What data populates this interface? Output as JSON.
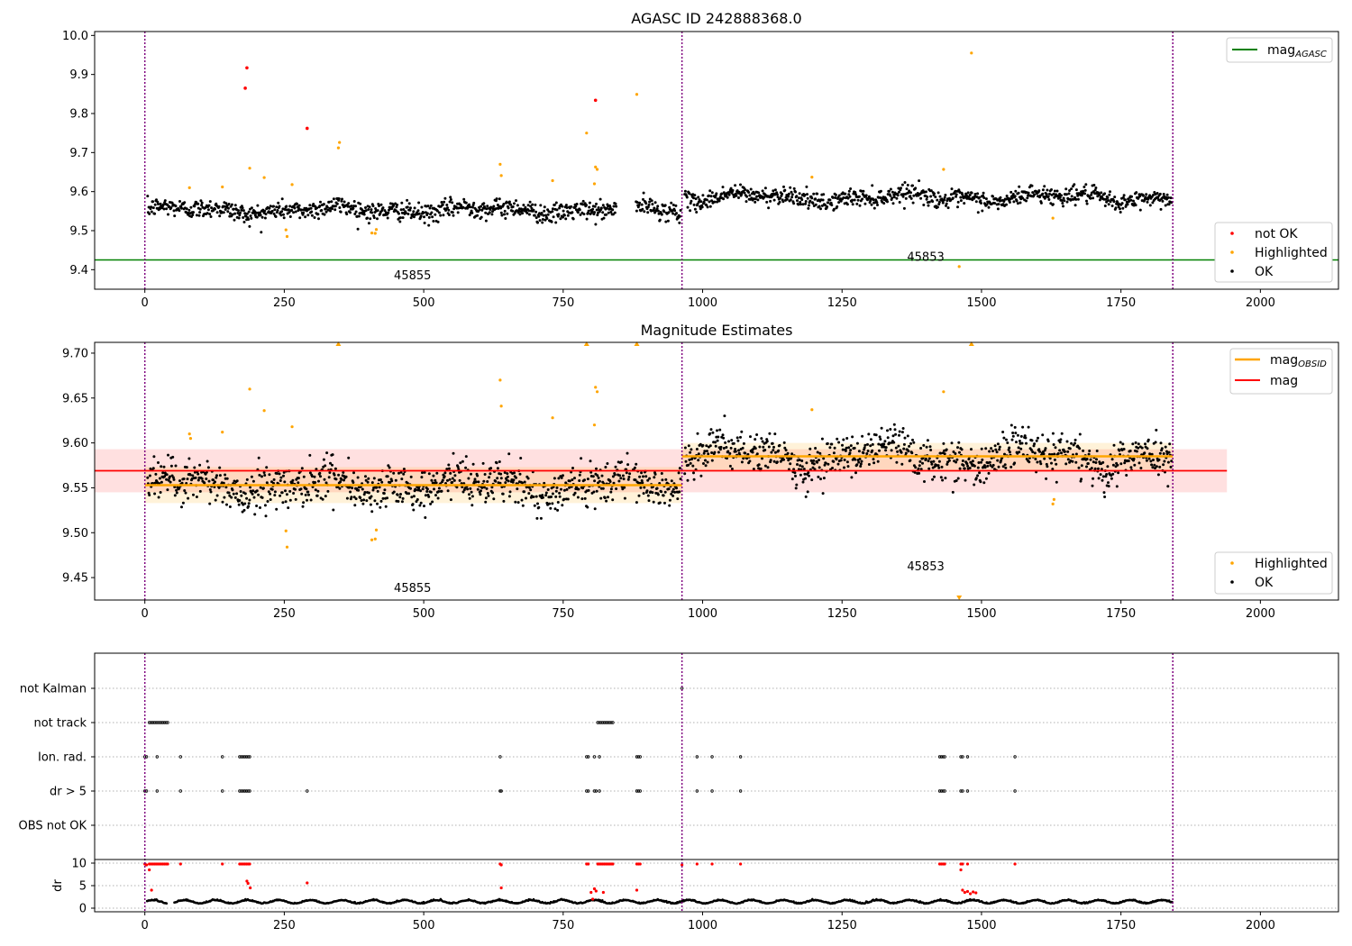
{
  "chart_data": [
    {
      "type": "scatter",
      "title": "AGASC ID 242888368.0",
      "xlim": [
        -90,
        2140
      ],
      "ylim": [
        9.35,
        10.01
      ],
      "xticks": [
        0,
        250,
        500,
        750,
        1000,
        1250,
        1500,
        1750,
        2000
      ],
      "yticks": [
        9.4,
        9.5,
        9.6,
        9.7,
        9.8,
        9.9,
        10.0
      ],
      "ytick_labels": [
        "9.4",
        "9.5",
        "9.6",
        "9.7",
        "9.8",
        "9.9",
        "10.0"
      ],
      "obsid_boundaries": [
        0,
        963,
        1843
      ],
      "obsid_labels": [
        {
          "text": "45855",
          "x": 480,
          "y": 9.375
        },
        {
          "text": "45853",
          "x": 1400,
          "y": 9.423
        }
      ],
      "mag_agasc": 9.425,
      "segments": [
        {
          "x_start": 0,
          "x_end": 963,
          "mean": 9.553,
          "wave_amp": 0.012,
          "noise": 0.012
        },
        {
          "x_start": 963,
          "x_end": 1843,
          "mean": 9.585,
          "wave_amp": 0.015,
          "noise": 0.011
        }
      ],
      "series": [
        {
          "name": "not OK",
          "color": "#ff0000",
          "points": [
            [
              183,
              9.917
            ],
            [
              180,
              9.865
            ],
            [
              291,
              9.762
            ],
            [
              808,
              9.834
            ]
          ]
        },
        {
          "name": "Highlighted",
          "color": "#ffa500",
          "points": [
            [
              80,
              9.61
            ],
            [
              139,
              9.612
            ],
            [
              188,
              9.66
            ],
            [
              214,
              9.636
            ],
            [
              253,
              9.502
            ],
            [
              255,
              9.485
            ],
            [
              264,
              9.618
            ],
            [
              347,
              9.712
            ],
            [
              349,
              9.726
            ],
            [
              407,
              9.494
            ],
            [
              413,
              9.493
            ],
            [
              415,
              9.503
            ],
            [
              637,
              9.67
            ],
            [
              639,
              9.641
            ],
            [
              731,
              9.628
            ],
            [
              792,
              9.75
            ],
            [
              806,
              9.62
            ],
            [
              808,
              9.663
            ],
            [
              811,
              9.657
            ],
            [
              882,
              9.849
            ],
            [
              1196,
              9.637
            ],
            [
              1432,
              9.657
            ],
            [
              1460,
              9.408
            ],
            [
              1482,
              9.955
            ],
            [
              1628,
              9.532
            ]
          ]
        },
        {
          "name": "OK",
          "color": "#000000"
        }
      ],
      "legends": [
        {
          "position": "upper right",
          "entries": [
            "mag_AGASC"
          ]
        },
        {
          "position": "lower right",
          "entries": [
            "not OK",
            "Highlighted",
            "OK"
          ]
        }
      ]
    },
    {
      "type": "scatter",
      "title": "Magnitude Estimates",
      "xlim": [
        -90,
        2140
      ],
      "ylim": [
        9.425,
        9.712
      ],
      "xticks": [
        0,
        250,
        500,
        750,
        1000,
        1250,
        1500,
        1750,
        2000
      ],
      "yticks": [
        9.45,
        9.5,
        9.55,
        9.6,
        9.65,
        9.7
      ],
      "ytick_labels": [
        "9.45",
        "9.50",
        "9.55",
        "9.60",
        "9.65",
        "9.70"
      ],
      "obsid_boundaries": [
        0,
        963,
        1843
      ],
      "obsid_labels": [
        {
          "text": "45855",
          "x": 480,
          "y": 9.434
        },
        {
          "text": "45853",
          "x": 1400,
          "y": 9.458
        }
      ],
      "mag": {
        "value": 9.569,
        "band": [
          9.545,
          9.593
        ],
        "x_range": [
          -90,
          1940
        ]
      },
      "mag_obsid": [
        {
          "x_start": 0,
          "x_end": 963,
          "value": 9.553,
          "band": [
            9.533,
            9.573
          ]
        },
        {
          "x_start": 963,
          "x_end": 1843,
          "value": 9.585,
          "band": [
            9.57,
            9.6
          ]
        }
      ],
      "clipped_markers": [
        {
          "x": 347,
          "y": 9.71
        },
        {
          "x": 792,
          "y": 9.71
        },
        {
          "x": 882,
          "y": 9.71
        },
        {
          "x": 1482,
          "y": 9.71
        },
        {
          "x": 1460,
          "y": 9.428
        }
      ],
      "series": [
        {
          "name": "Highlighted",
          "color": "#ffa500",
          "points": [
            [
              80,
              9.61
            ],
            [
              82,
              9.605
            ],
            [
              139,
              9.612
            ],
            [
              188,
              9.66
            ],
            [
              214,
              9.636
            ],
            [
              253,
              9.502
            ],
            [
              255,
              9.484
            ],
            [
              264,
              9.618
            ],
            [
              407,
              9.492
            ],
            [
              413,
              9.493
            ],
            [
              415,
              9.503
            ],
            [
              637,
              9.67
            ],
            [
              639,
              9.641
            ],
            [
              731,
              9.628
            ],
            [
              806,
              9.62
            ],
            [
              808,
              9.662
            ],
            [
              811,
              9.657
            ],
            [
              1196,
              9.637
            ],
            [
              1432,
              9.657
            ],
            [
              1628,
              9.532
            ],
            [
              1630,
              9.537
            ]
          ]
        },
        {
          "name": "OK",
          "color": "#000000"
        }
      ],
      "legends": [
        {
          "position": "upper right",
          "entries": [
            "mag_OBSID",
            "mag"
          ]
        },
        {
          "position": "lower right",
          "entries": [
            "Highlighted",
            "OK"
          ]
        }
      ]
    },
    {
      "type": "scatter",
      "title": "",
      "xlim": [
        -90,
        2140
      ],
      "xticks": [
        0,
        250,
        500,
        750,
        1000,
        1250,
        1500,
        1750,
        2000
      ],
      "obsid_boundaries": [
        0,
        963,
        1843
      ],
      "flag_rows": [
        {
          "label": "not Kalman",
          "x": [
            963
          ]
        },
        {
          "label": "not track",
          "x": [
            8,
            11,
            14,
            17,
            20,
            23,
            26,
            29,
            32,
            35,
            38,
            41,
            812,
            815,
            818,
            821,
            824,
            827,
            830,
            833,
            836,
            839
          ]
        },
        {
          "label": "Ion. rad.",
          "x": [
            0,
            3,
            22,
            64,
            139,
            170,
            173,
            176,
            179,
            182,
            185,
            188,
            637,
            792,
            795,
            806,
            815,
            882,
            885,
            888,
            990,
            1017,
            1068,
            1425,
            1428,
            1431,
            1434,
            1463,
            1466,
            1475,
            1560
          ]
        },
        {
          "label": "dr > 5",
          "x": [
            0,
            3,
            22,
            64,
            139,
            170,
            173,
            176,
            179,
            182,
            185,
            188,
            291,
            637,
            639,
            792,
            795,
            806,
            809,
            815,
            882,
            885,
            888,
            990,
            1017,
            1068,
            1425,
            1428,
            1431,
            1434,
            1463,
            1466,
            1475,
            1560
          ]
        },
        {
          "label": "OBS not OK",
          "x": []
        }
      ],
      "dr_panel": {
        "ylabel": "dr",
        "ylim": [
          -0.8,
          10.8
        ],
        "yticks": [
          0,
          5,
          10
        ],
        "ytick_labels": [
          "0",
          "5",
          "10"
        ],
        "red_points": [
          [
            0,
            9.8
          ],
          [
            3,
            9.6
          ],
          [
            8,
            9.8
          ],
          [
            11,
            9.8
          ],
          [
            14,
            9.8
          ],
          [
            17,
            9.8
          ],
          [
            20,
            9.8
          ],
          [
            23,
            9.8
          ],
          [
            26,
            9.8
          ],
          [
            29,
            9.8
          ],
          [
            32,
            9.8
          ],
          [
            35,
            9.8
          ],
          [
            38,
            9.8
          ],
          [
            41,
            9.8
          ],
          [
            8,
            8.5
          ],
          [
            12,
            4.0
          ],
          [
            64,
            9.8
          ],
          [
            139,
            9.8
          ],
          [
            170,
            9.8
          ],
          [
            173,
            9.8
          ],
          [
            176,
            9.8
          ],
          [
            179,
            9.8
          ],
          [
            182,
            9.8
          ],
          [
            185,
            9.8
          ],
          [
            188,
            9.8
          ],
          [
            183,
            6.0
          ],
          [
            185,
            5.5
          ],
          [
            189,
            4.5
          ],
          [
            291,
            5.6
          ],
          [
            637,
            9.8
          ],
          [
            639,
            9.6
          ],
          [
            639,
            4.5
          ],
          [
            792,
            9.8
          ],
          [
            795,
            9.8
          ],
          [
            800,
            3.5
          ],
          [
            803,
            2.0
          ],
          [
            806,
            4.3
          ],
          [
            809,
            3.8
          ],
          [
            812,
            9.8
          ],
          [
            815,
            9.8
          ],
          [
            818,
            9.8
          ],
          [
            821,
            9.8
          ],
          [
            824,
            9.8
          ],
          [
            827,
            9.8
          ],
          [
            830,
            9.8
          ],
          [
            833,
            9.8
          ],
          [
            836,
            9.8
          ],
          [
            839,
            9.8
          ],
          [
            822,
            3.5
          ],
          [
            882,
            9.8
          ],
          [
            885,
            9.8
          ],
          [
            888,
            9.8
          ],
          [
            882,
            4.0
          ],
          [
            963,
            9.6
          ],
          [
            990,
            9.8
          ],
          [
            1017,
            9.8
          ],
          [
            1068,
            9.8
          ],
          [
            1425,
            9.8
          ],
          [
            1428,
            9.8
          ],
          [
            1431,
            9.8
          ],
          [
            1434,
            9.8
          ],
          [
            1463,
            9.8
          ],
          [
            1466,
            9.8
          ],
          [
            1475,
            9.8
          ],
          [
            1463,
            8.5
          ],
          [
            1466,
            4.0
          ],
          [
            1470,
            3.5
          ],
          [
            1475,
            3.7
          ],
          [
            1480,
            3.2
          ],
          [
            1485,
            3.6
          ],
          [
            1490,
            3.4
          ],
          [
            1560,
            9.8
          ]
        ],
        "black_trend": {
          "x_start": 0,
          "x_end": 1843,
          "baseline": 1.0,
          "amplitude": 0.9
        }
      }
    }
  ]
}
